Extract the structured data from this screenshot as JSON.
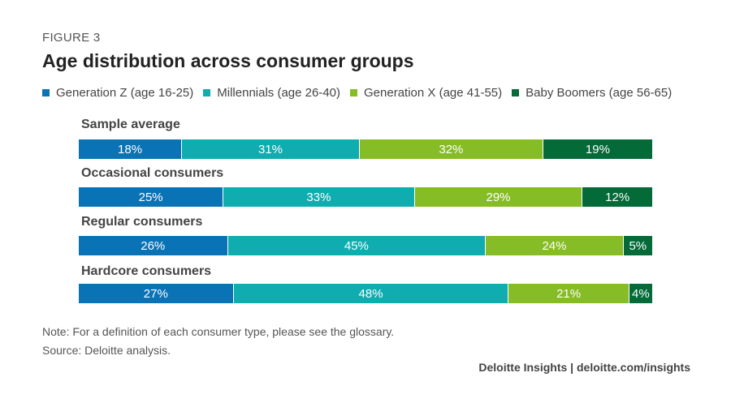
{
  "figure_label": "FIGURE 3",
  "chart_data": {
    "type": "bar",
    "orientation": "horizontal",
    "stacked": true,
    "title": "Age distribution across consumer groups",
    "categories": [
      "Sample average",
      "Occasional consumers",
      "Regular consumers",
      "Hardcore consumers"
    ],
    "series": [
      {
        "name": "Generation Z (age 16-25)",
        "color": "#0a73b6",
        "values": [
          18,
          25,
          26,
          27
        ],
        "labels": [
          "18%",
          "25%",
          "26%",
          "27%"
        ]
      },
      {
        "name": "Millennials (age 26-40)",
        "color": "#0fadb0",
        "values": [
          31,
          33,
          45,
          48
        ],
        "labels": [
          "31%",
          "33%",
          "45%",
          "48%"
        ]
      },
      {
        "name": "Generation X (age 41-55)",
        "color": "#86bc25",
        "values": [
          32,
          29,
          24,
          21
        ],
        "labels": [
          "32%",
          "29%",
          "24%",
          "21%"
        ]
      },
      {
        "name": "Baby Boomers (age 56-65)",
        "color": "#046a38",
        "values": [
          19,
          12,
          5,
          4
        ],
        "labels": [
          "19%",
          "12%",
          "5%",
          "4%"
        ]
      }
    ],
    "legend_position": "top"
  },
  "notes": [
    "Note: For a definition of each consumer type, please see the glossary.",
    "Source: Deloitte analysis."
  ],
  "footer": "Deloitte Insights | deloitte.com/insights"
}
